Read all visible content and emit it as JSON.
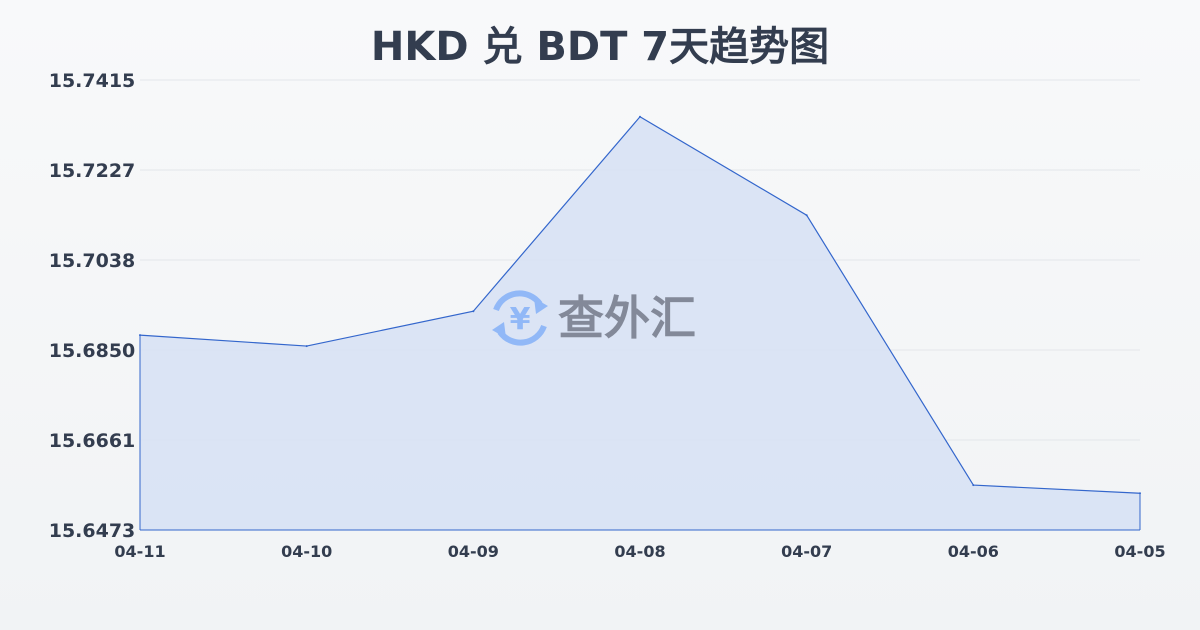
{
  "chart_data": {
    "type": "area",
    "title": "HKD 兑 BDT 7天趋势图",
    "categories": [
      "04-11",
      "04-10",
      "04-09",
      "04-08",
      "04-07",
      "04-06",
      "04-05"
    ],
    "values": [
      15.6881,
      15.6858,
      15.6931,
      15.7338,
      15.7132,
      15.6567,
      15.655
    ],
    "yticks": [
      "15.7415",
      "15.7227",
      "15.7038",
      "15.6850",
      "15.6661",
      "15.6473"
    ],
    "ylim": [
      15.6473,
      15.7415
    ],
    "xlabel": "",
    "ylabel": "",
    "grid": true,
    "line_color": "#3366cc",
    "fill_color": "#d6e1f5"
  },
  "watermark": {
    "text": "查外汇",
    "icon": "yen-exchange-icon",
    "icon_color": "#8ab4f8"
  }
}
